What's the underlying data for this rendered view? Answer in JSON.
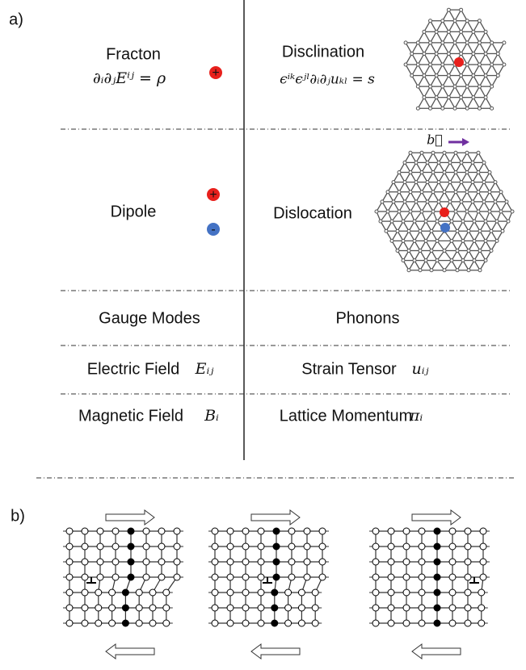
{
  "panel_a": {
    "label": "a)",
    "rows": [
      {
        "left": "Fracton",
        "left_formula": "∂ᵢ∂ⱼEⁱʲ = ρ",
        "right": "Disclination",
        "right_formula": "ϵⁱᵏϵʲˡ∂ᵢ∂ⱼuₖₗ = s"
      },
      {
        "left": "Dipole",
        "right": "Dislocation",
        "burgers": "b⃗"
      },
      {
        "left": "Gauge Modes",
        "right": "Phonons"
      },
      {
        "left": "Electric Field",
        "left_symbol": "Eᵢⱼ",
        "right": "Strain Tensor",
        "right_symbol": "uᵢⱼ"
      },
      {
        "left": "Magnetic Field",
        "left_symbol": "Bᵢ",
        "right": "Lattice Momentum",
        "right_symbol": "πᵢ"
      }
    ],
    "charges": {
      "plus": "+",
      "minus": "-"
    }
  },
  "panel_b": {
    "label": "b)"
  }
}
